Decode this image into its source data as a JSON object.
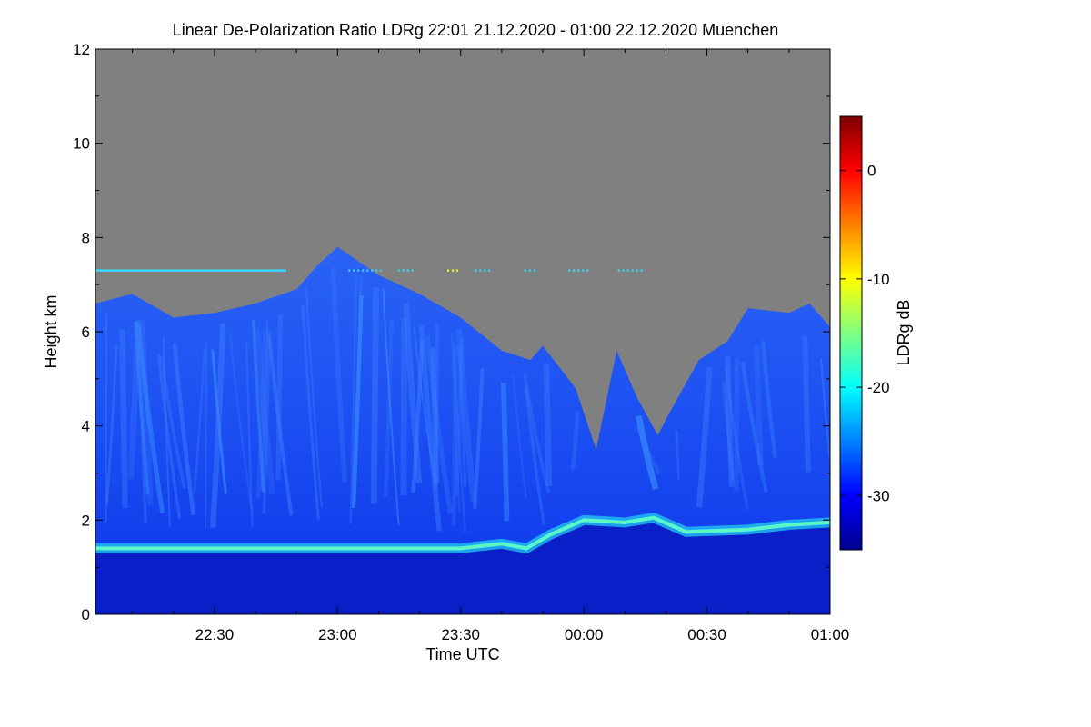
{
  "chart_data": {
    "type": "heatmap",
    "title": "Linear De-Polarization Ratio LDRg   22:01 21.12.2020 - 01:00 22.12.2020 Muenchen",
    "xlabel": "Time UTC",
    "ylabel": "Height km",
    "colorbar_label": "LDRg dB",
    "x_range": [
      "22:01",
      "01:00"
    ],
    "x_ticks": [
      "22:30",
      "23:00",
      "23:30",
      "00:00",
      "00:30",
      "01:00"
    ],
    "y_range": [
      0,
      12
    ],
    "y_ticks": [
      "0",
      "2",
      "4",
      "6",
      "8",
      "10",
      "12"
    ],
    "colorbar_range": [
      -35,
      5
    ],
    "colorbar_ticks": [
      "0",
      "-10",
      "-20",
      "-30"
    ],
    "no_signal_color": "#808080",
    "colormap": [
      "#00008f",
      "#0000ff",
      "#0080ff",
      "#00ffff",
      "#80ff80",
      "#ffff00",
      "#ff8000",
      "#ff0000",
      "#800000"
    ],
    "cloud_top_km": [
      [
        "22:01",
        6.6
      ],
      [
        "22:10",
        6.8
      ],
      [
        "22:20",
        6.3
      ],
      [
        "22:30",
        6.4
      ],
      [
        "22:40",
        6.6
      ],
      [
        "22:50",
        6.9
      ],
      [
        "22:55",
        7.4
      ],
      [
        "23:00",
        7.8
      ],
      [
        "23:10",
        7.2
      ],
      [
        "23:20",
        6.8
      ],
      [
        "23:30",
        6.3
      ],
      [
        "23:40",
        5.6
      ],
      [
        "23:47",
        5.4
      ],
      [
        "23:50",
        5.7
      ],
      [
        "23:58",
        4.8
      ],
      [
        "00:03",
        3.5
      ],
      [
        "00:08",
        5.6
      ],
      [
        "00:13",
        4.6
      ],
      [
        "00:18",
        3.8
      ],
      [
        "00:21",
        4.3
      ],
      [
        "00:28",
        5.4
      ],
      [
        "00:35",
        5.8
      ],
      [
        "00:40",
        6.5
      ],
      [
        "00:50",
        6.4
      ],
      [
        "00:55",
        6.6
      ],
      [
        "01:00",
        6.1
      ]
    ],
    "boundary_layer_km": [
      [
        "22:01",
        1.4
      ],
      [
        "22:30",
        1.4
      ],
      [
        "23:00",
        1.4
      ],
      [
        "23:30",
        1.4
      ],
      [
        "23:40",
        1.5
      ],
      [
        "23:46",
        1.4
      ],
      [
        "23:52",
        1.7
      ],
      [
        "00:00",
        2.0
      ],
      [
        "00:10",
        1.95
      ],
      [
        "00:17",
        2.05
      ],
      [
        "00:25",
        1.75
      ],
      [
        "00:40",
        1.8
      ],
      [
        "00:50",
        1.9
      ],
      [
        "01:00",
        1.95
      ]
    ],
    "boundary_layer_ldr_db": -22,
    "cloud_ldr_db": -29,
    "below_boundary_layer_ldr_db": -34,
    "aerosol_layer": {
      "height_km": 7.3,
      "from": "22:01",
      "to": "00:15",
      "ldr_db": -20
    }
  }
}
